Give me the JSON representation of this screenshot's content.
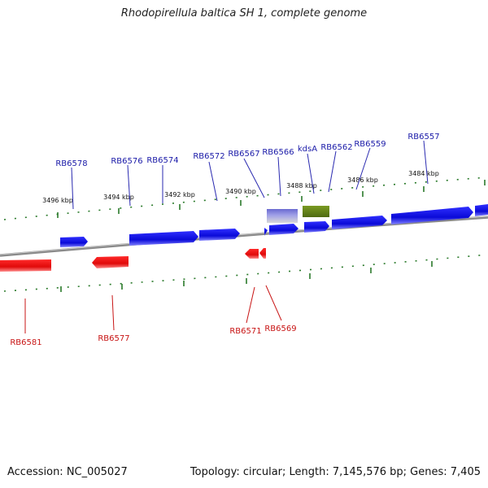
{
  "header": {
    "title": "Rhodopirellula baltica SH 1, complete genome"
  },
  "footer": {
    "accession": "Accession: NC_005027",
    "topology": "Topology: circular; Length: 7,145,576 bp; Genes: 7,405"
  },
  "colors": {
    "forward_gene": "#1010e0",
    "reverse_gene": "#e01010",
    "forward_label": "#1a1aa8",
    "reverse_label": "#c81414",
    "rna_feature": "#6b8a1a",
    "repeat_feature": "#7070c8",
    "backbone": "#8a8a8a",
    "tick": "#2a7a2a"
  },
  "scale": {
    "upper_ticks": [
      {
        "label": "3496 kbp"
      },
      {
        "label": "3494 kbp"
      },
      {
        "label": "3492 kbp"
      },
      {
        "label": "3490 kbp"
      },
      {
        "label": "3488 kbp"
      },
      {
        "label": "3486 kbp"
      },
      {
        "label": "3484 kbp"
      }
    ]
  },
  "forward_labels": [
    "RB6578",
    "RB6576",
    "RB6574",
    "RB6572",
    "RB6567",
    "RB6566",
    "kdsA",
    "RB6562",
    "RB6559",
    "RB6557"
  ],
  "reverse_labels": [
    "RB6581",
    "RB6577",
    "RB6571",
    "RB6569"
  ]
}
